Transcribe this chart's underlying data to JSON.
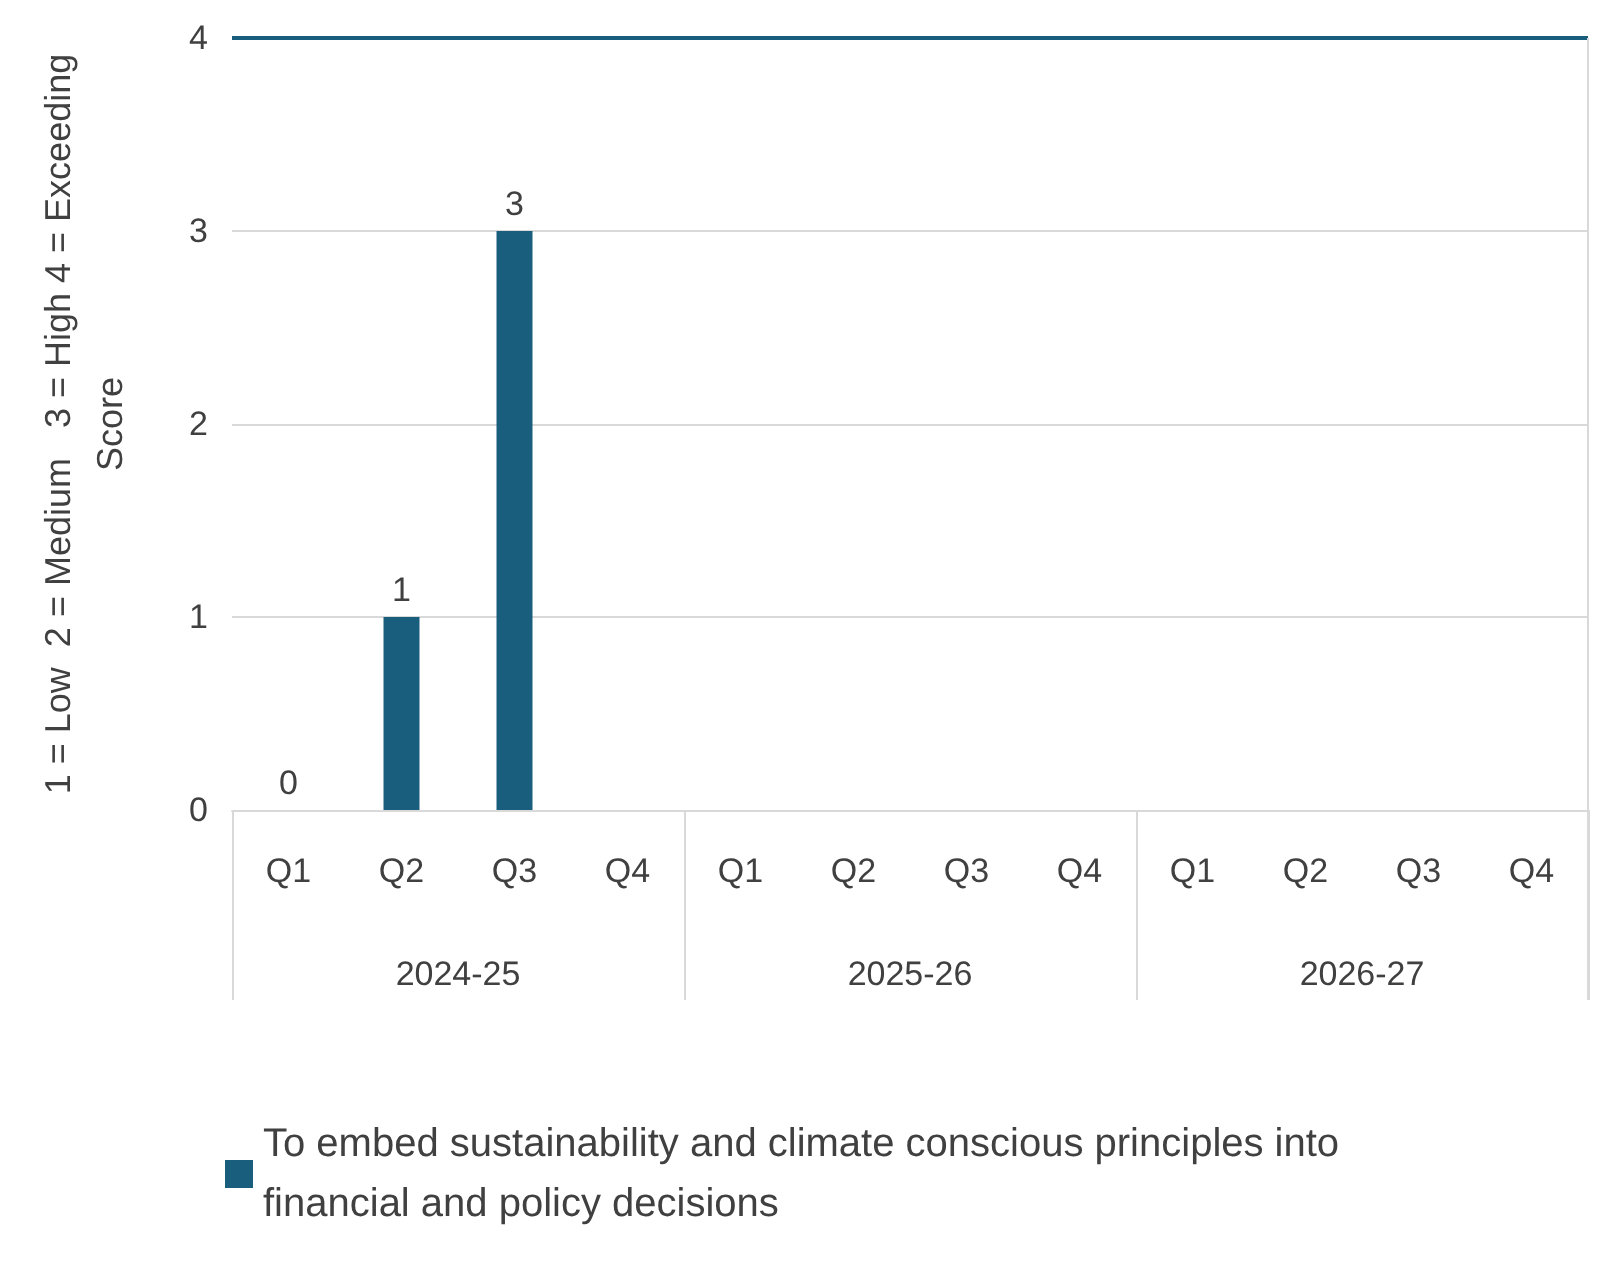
{
  "chart_data": {
    "type": "bar",
    "ylabel": "1 = Low  2 = Medium   3 = High 4 = Exceeding\nScore",
    "categories": [
      "Q1",
      "Q2",
      "Q3",
      "Q4",
      "Q1",
      "Q2",
      "Q3",
      "Q4",
      "Q1",
      "Q2",
      "Q3",
      "Q4"
    ],
    "series": [
      {
        "name": "To embed sustainability and climate conscious principles into financial and policy decisions",
        "color": "#1a5e7e",
        "values": [
          0,
          1,
          3,
          null,
          null,
          null,
          null,
          null,
          null,
          null,
          null,
          null
        ]
      }
    ],
    "ylim": [
      0,
      4
    ],
    "yticks": [
      0,
      1,
      2,
      3,
      4
    ],
    "grid": "y",
    "data_labels": true,
    "legend": "bottom",
    "annotations": [
      "2024-25",
      "2025-26",
      "2026-27"
    ]
  }
}
